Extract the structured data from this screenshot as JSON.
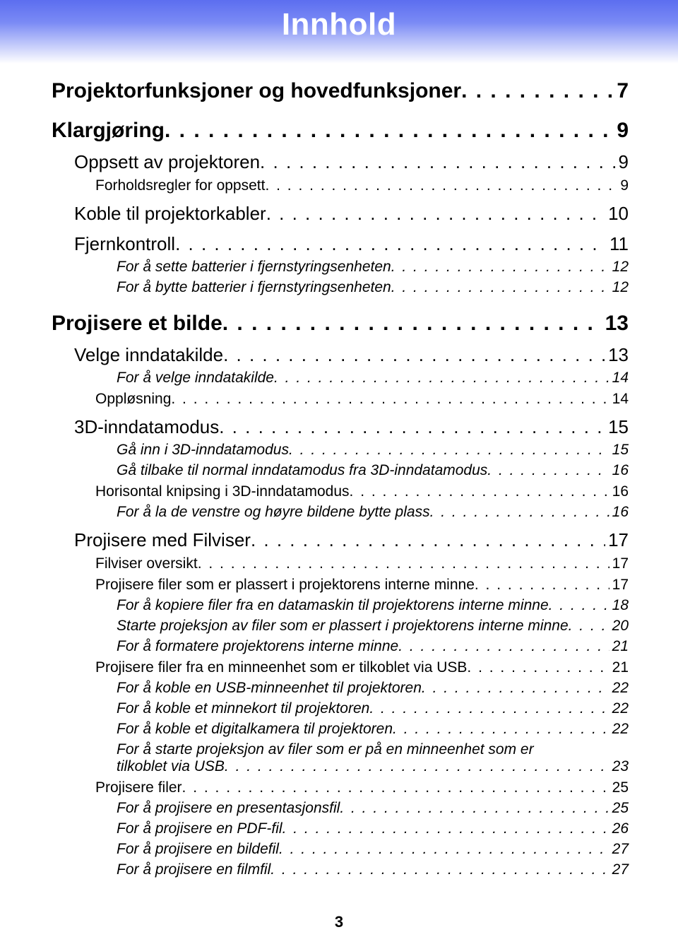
{
  "title": "Innhold",
  "page_number": "3",
  "colors": {
    "gradient_top": "#5c6ef0",
    "gradient_mid": "#7a8af5",
    "gradient_bottom": "#ffffff",
    "title_text": "#ffffff",
    "text": "#000000",
    "bg": "#ffffff"
  },
  "typography": {
    "title_fontsize": 44,
    "lvl1_fontsize": 30,
    "lvl2_fontsize": 26,
    "lvl3_fontsize": 21,
    "lvl4_fontsize": 21
  },
  "entries": [
    {
      "level": 1,
      "label": "Projektorfunksjoner og hovedfunksjoner",
      "page": "7"
    },
    {
      "level": 1,
      "label": "Klargjøring",
      "page": "9"
    },
    {
      "level": 2,
      "label": "Oppsett av projektoren",
      "page": "9"
    },
    {
      "level": 3,
      "label": "Forholdsregler for oppsett",
      "page": "9"
    },
    {
      "level": 2,
      "label": "Koble til projektorkabler",
      "page": "10"
    },
    {
      "level": 2,
      "label": "Fjernkontroll",
      "page": "11"
    },
    {
      "level": 4,
      "label": "For å sette batterier i fjernstyringsenheten",
      "page": "12"
    },
    {
      "level": 4,
      "label": "For å bytte batterier i fjernstyringsenheten",
      "page": "12"
    },
    {
      "level": 1,
      "label": "Projisere et bilde",
      "page": "13"
    },
    {
      "level": 2,
      "label": "Velge inndatakilde",
      "page": "13"
    },
    {
      "level": 4,
      "label": "For å velge inndatakilde",
      "page": "14"
    },
    {
      "level": 3,
      "label": "Oppløsning",
      "page": "14"
    },
    {
      "level": 2,
      "label": "3D-inndatamodus",
      "page": "15"
    },
    {
      "level": 4,
      "label": "Gå inn i 3D-inndatamodus",
      "page": "15"
    },
    {
      "level": 4,
      "label": "Gå tilbake til normal inndatamodus fra 3D-inndatamodus",
      "page": "16"
    },
    {
      "level": 3,
      "label": "Horisontal knipsing i 3D-inndatamodus",
      "page": "16"
    },
    {
      "level": 4,
      "label": "For å la de venstre og høyre bildene bytte plass",
      "page": "16"
    },
    {
      "level": 2,
      "label": "Projisere med Filviser",
      "page": "17"
    },
    {
      "level": 3,
      "label": "Filviser oversikt",
      "page": "17"
    },
    {
      "level": 3,
      "label": "Projisere filer som er plassert i projektorens interne minne",
      "page": "17"
    },
    {
      "level": 4,
      "label": "For å kopiere filer fra en datamaskin til projektorens interne minne",
      "page": "18"
    },
    {
      "level": 4,
      "label": "Starte projeksjon av filer som er plassert i projektorens interne minne",
      "page": "20"
    },
    {
      "level": 4,
      "label": "For å formatere projektorens interne minne",
      "page": "21"
    },
    {
      "level": 3,
      "label": "Projisere filer fra en minneenhet som er tilkoblet via USB",
      "page": "21"
    },
    {
      "level": 4,
      "label": "For å koble en USB-minneenhet til projektoren",
      "page": "22"
    },
    {
      "level": 4,
      "label": "For å koble et minnekort til projektoren",
      "page": "22"
    },
    {
      "level": 4,
      "label": "For å koble et digitalkamera til projektoren",
      "page": "22"
    },
    {
      "level": 4,
      "label": "For å starte projeksjon av filer som er på en minneenhet som er",
      "label2": "tilkoblet via USB",
      "page": "23",
      "wrap": true
    },
    {
      "level": 3,
      "label": "Projisere filer",
      "page": "25"
    },
    {
      "level": 4,
      "label": "For å projisere en presentasjonsfil",
      "page": "25"
    },
    {
      "level": 4,
      "label": "For å projisere en PDF-fil",
      "page": "26"
    },
    {
      "level": 4,
      "label": "For å projisere en bildefil",
      "page": "27"
    },
    {
      "level": 4,
      "label": "For å projisere en filmfil",
      "page": "27"
    }
  ]
}
